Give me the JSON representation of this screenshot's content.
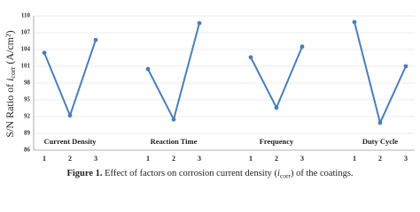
{
  "chart_data": {
    "type": "line",
    "ylabel": [
      "S/N  Ratio  of  ",
      "i",
      "corr",
      " (A/cm²)"
    ],
    "categories": [
      "1",
      "2",
      "3"
    ],
    "series": [
      {
        "name": "Current Density",
        "color": "#4a7ebb",
        "values": [
          103.4,
          92.2,
          105.7
        ]
      },
      {
        "name": "Reaction Time",
        "color": "#4a7ebb",
        "values": [
          100.5,
          91.5,
          108.7
        ]
      },
      {
        "name": "Frequency",
        "color": "#4a7ebb",
        "values": [
          102.6,
          93.6,
          104.5
        ]
      },
      {
        "name": "Duty Cycle",
        "color": "#4a7ebb",
        "values": [
          108.9,
          90.9,
          101
        ]
      }
    ],
    "ylim": [
      86,
      110
    ],
    "yticks": [
      86,
      89,
      92,
      95,
      98,
      101,
      104,
      107,
      110
    ],
    "grid": true
  },
  "caption": {
    "label": "Figure 1.",
    "parts": [
      " Effect of factors on corrosion current density (",
      "i",
      "corr",
      ") of the coatings."
    ]
  }
}
